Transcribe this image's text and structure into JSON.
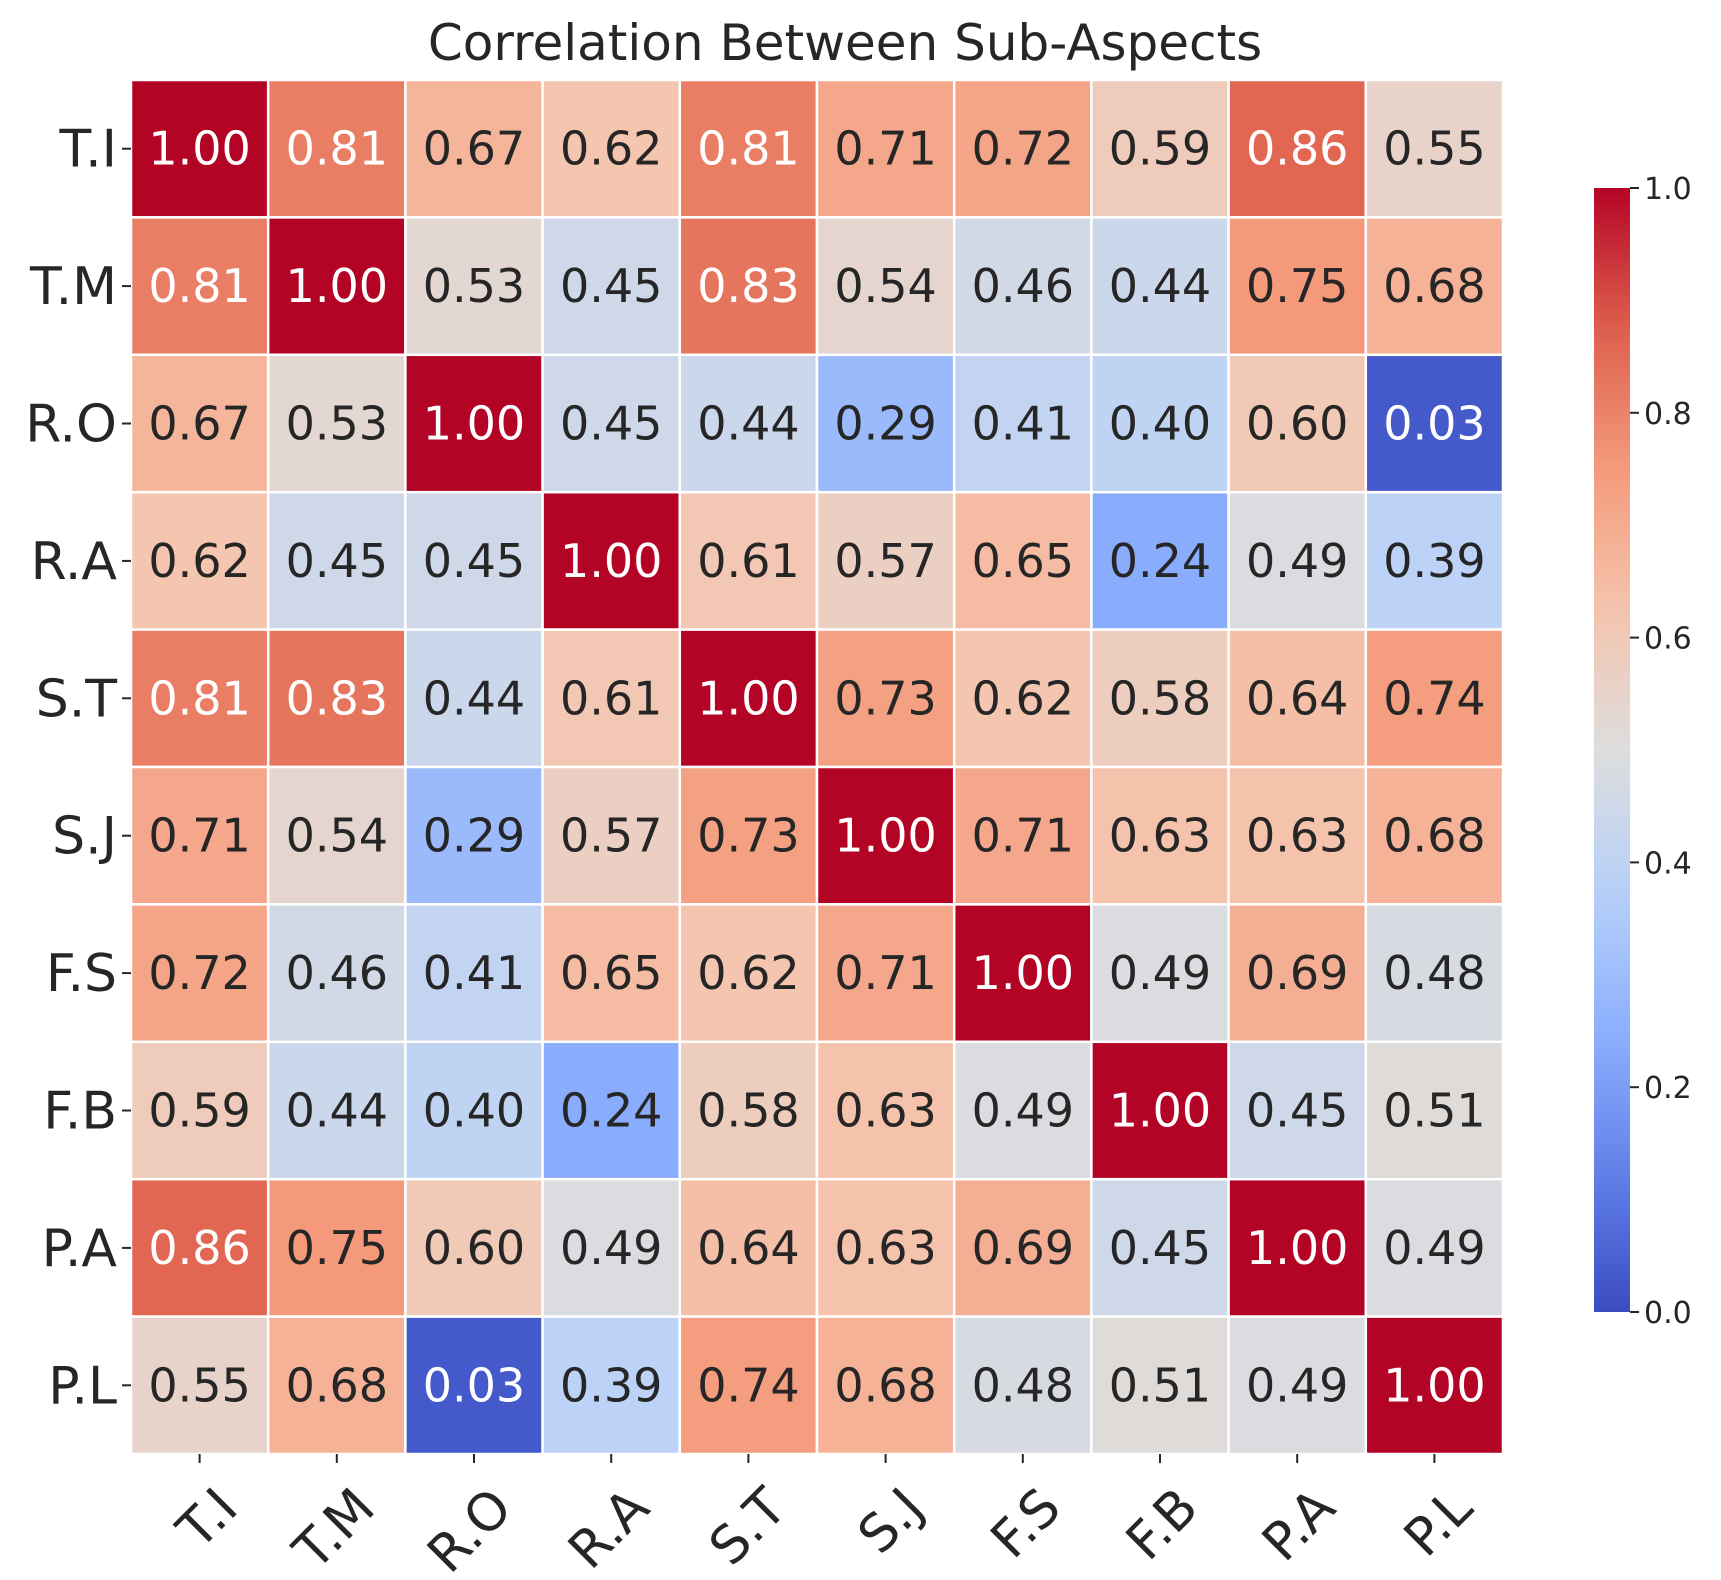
{
  "chart_data": {
    "type": "heatmap",
    "title": "Correlation Between Sub-Aspects",
    "xlabel": "",
    "ylabel": "",
    "row_labels": [
      "T.I",
      "T.M",
      "R.O",
      "R.A",
      "S.T",
      "S.J",
      "F.S",
      "F.B",
      "P.A",
      "P.L"
    ],
    "col_labels": [
      "T.I",
      "T.M",
      "R.O",
      "R.A",
      "S.T",
      "S.J",
      "F.S",
      "F.B",
      "P.A",
      "P.L"
    ],
    "values": [
      [
        1.0,
        0.81,
        0.67,
        0.62,
        0.81,
        0.71,
        0.72,
        0.59,
        0.86,
        0.55
      ],
      [
        0.81,
        1.0,
        0.53,
        0.45,
        0.83,
        0.54,
        0.46,
        0.44,
        0.75,
        0.68
      ],
      [
        0.67,
        0.53,
        1.0,
        0.45,
        0.44,
        0.29,
        0.41,
        0.4,
        0.6,
        0.03
      ],
      [
        0.62,
        0.45,
        0.45,
        1.0,
        0.61,
        0.57,
        0.65,
        0.24,
        0.49,
        0.39
      ],
      [
        0.81,
        0.83,
        0.44,
        0.61,
        1.0,
        0.73,
        0.62,
        0.58,
        0.64,
        0.74
      ],
      [
        0.71,
        0.54,
        0.29,
        0.57,
        0.73,
        1.0,
        0.71,
        0.63,
        0.63,
        0.68
      ],
      [
        0.72,
        0.46,
        0.41,
        0.65,
        0.62,
        0.71,
        1.0,
        0.49,
        0.69,
        0.48
      ],
      [
        0.59,
        0.44,
        0.4,
        0.24,
        0.58,
        0.63,
        0.49,
        1.0,
        0.45,
        0.51
      ],
      [
        0.86,
        0.75,
        0.6,
        0.49,
        0.64,
        0.63,
        0.69,
        0.45,
        1.0,
        0.49
      ],
      [
        0.55,
        0.68,
        0.03,
        0.39,
        0.74,
        0.68,
        0.48,
        0.51,
        0.49,
        1.0
      ]
    ],
    "value_format": "0.00",
    "colormap": "coolwarm",
    "color_range": [
      0.0,
      1.0
    ],
    "colorbar": {
      "ticks": [
        0.0,
        0.2,
        0.4,
        0.6,
        0.8,
        1.0
      ],
      "tick_labels": [
        "0.0",
        "0.2",
        "0.4",
        "0.6",
        "0.8",
        "1.0"
      ],
      "placement": "right"
    },
    "grid_lines": true,
    "grid_color": "#ffffff"
  }
}
